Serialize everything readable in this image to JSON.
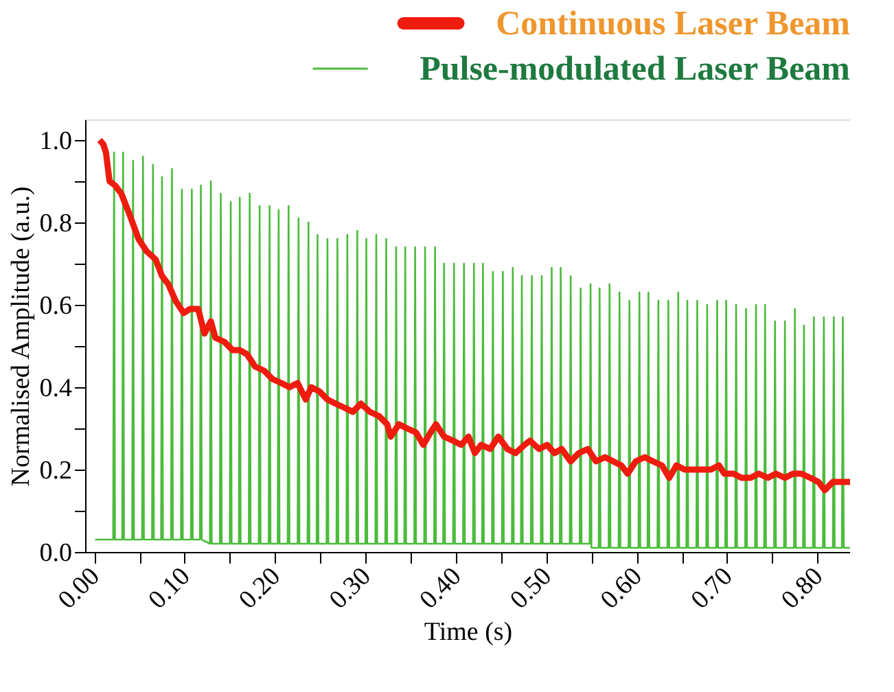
{
  "chart_data": {
    "type": "line",
    "xlabel": "Time (s)",
    "ylabel": "Normalised Amplitude (a.u.)",
    "xlim": [
      -0.01,
      0.836
    ],
    "ylim": [
      0,
      1.05
    ],
    "xticks": [
      {
        "value": 0,
        "label": "0.00"
      },
      {
        "value": 0.05,
        "label": null
      },
      {
        "value": 0.1,
        "label": "0.10"
      },
      {
        "value": 0.15,
        "label": null
      },
      {
        "value": 0.2,
        "label": "0.20"
      },
      {
        "value": 0.25,
        "label": null
      },
      {
        "value": 0.3,
        "label": "0.30"
      },
      {
        "value": 0.35,
        "label": null
      },
      {
        "value": 0.4,
        "label": "0.40"
      },
      {
        "value": 0.45,
        "label": null
      },
      {
        "value": 0.5,
        "label": "0.50"
      },
      {
        "value": 0.55,
        "label": null
      },
      {
        "value": 0.6,
        "label": "0.60"
      },
      {
        "value": 0.65,
        "label": null
      },
      {
        "value": 0.7,
        "label": "0.70"
      },
      {
        "value": 0.75,
        "label": null
      },
      {
        "value": 0.8,
        "label": "0.80"
      }
    ],
    "yticks": [
      {
        "value": 0,
        "label": "0.0"
      },
      {
        "value": 0.1,
        "label": null
      },
      {
        "value": 0.2,
        "label": "0.2"
      },
      {
        "value": 0.3,
        "label": null
      },
      {
        "value": 0.4,
        "label": "0.4"
      },
      {
        "value": 0.5,
        "label": null
      },
      {
        "value": 0.6,
        "label": "0.6"
      },
      {
        "value": 0.7,
        "label": null
      },
      {
        "value": 0.8,
        "label": "0.8"
      },
      {
        "value": 0.9,
        "label": null
      },
      {
        "value": 1.0,
        "label": "1.0"
      }
    ],
    "grid": false,
    "legend": "top right",
    "marker": "none",
    "line_style": "solid",
    "series": [
      {
        "name": "Pulse-modulated Laser Beam",
        "color": "#4cbb3c",
        "x": [
          0.001,
          0.021,
          0.022,
          0.023,
          0.031,
          0.032,
          0.033,
          0.042,
          0.043,
          0.044,
          0.053,
          0.054,
          0.055,
          0.064,
          0.065,
          0.066,
          0.074,
          0.075,
          0.076,
          0.085,
          0.086,
          0.087,
          0.096,
          0.097,
          0.098,
          0.107,
          0.108,
          0.109,
          0.117,
          0.118,
          0.119,
          0.128,
          0.129,
          0.13,
          0.139,
          0.14,
          0.141,
          0.15,
          0.151,
          0.152,
          0.16,
          0.161,
          0.162,
          0.171,
          0.172,
          0.173,
          0.182,
          0.183,
          0.184,
          0.193,
          0.194,
          0.195,
          0.203,
          0.204,
          0.205,
          0.214,
          0.215,
          0.216,
          0.225,
          0.226,
          0.227,
          0.236,
          0.237,
          0.238,
          0.246,
          0.247,
          0.248,
          0.257,
          0.258,
          0.259,
          0.268,
          0.269,
          0.27,
          0.279,
          0.28,
          0.281,
          0.29,
          0.291,
          0.292,
          0.3,
          0.301,
          0.302,
          0.311,
          0.312,
          0.313,
          0.322,
          0.323,
          0.324,
          0.333,
          0.334,
          0.335,
          0.343,
          0.344,
          0.345,
          0.354,
          0.355,
          0.356,
          0.365,
          0.366,
          0.367,
          0.376,
          0.377,
          0.378,
          0.386,
          0.387,
          0.388,
          0.397,
          0.398,
          0.399,
          0.408,
          0.409,
          0.41,
          0.419,
          0.42,
          0.421,
          0.429,
          0.43,
          0.431,
          0.44,
          0.441,
          0.442,
          0.451,
          0.452,
          0.453,
          0.462,
          0.463,
          0.464,
          0.472,
          0.473,
          0.474,
          0.483,
          0.484,
          0.485,
          0.494,
          0.495,
          0.496,
          0.505,
          0.506,
          0.507,
          0.515,
          0.516,
          0.517,
          0.526,
          0.527,
          0.528,
          0.537,
          0.538,
          0.539,
          0.548,
          0.549,
          0.55,
          0.558,
          0.559,
          0.56,
          0.569,
          0.57,
          0.571,
          0.58,
          0.581,
          0.582,
          0.591,
          0.592,
          0.593,
          0.602,
          0.603,
          0.604,
          0.612,
          0.613,
          0.614,
          0.623,
          0.624,
          0.625,
          0.634,
          0.635,
          0.636,
          0.645,
          0.646,
          0.647,
          0.655,
          0.656,
          0.657,
          0.666,
          0.667,
          0.668,
          0.677,
          0.678,
          0.679,
          0.688,
          0.689,
          0.69,
          0.698,
          0.699,
          0.7,
          0.709,
          0.71,
          0.711,
          0.72,
          0.721,
          0.722,
          0.731,
          0.732,
          0.733,
          0.741,
          0.742,
          0.743,
          0.752,
          0.753,
          0.754,
          0.763,
          0.764,
          0.765,
          0.774,
          0.775,
          0.776,
          0.784,
          0.785,
          0.786,
          0.795,
          0.796,
          0.797,
          0.806,
          0.807,
          0.808,
          0.817,
          0.818,
          0.819,
          0.827,
          0.828,
          0.829,
          0.836
        ],
        "values": [
          0.03,
          0.03,
          0.97,
          0.03,
          0.03,
          0.97,
          0.03,
          0.03,
          0.95,
          0.03,
          0.03,
          0.96,
          0.03,
          0.03,
          0.94,
          0.03,
          0.03,
          0.91,
          0.03,
          0.03,
          0.93,
          0.03,
          0.03,
          0.88,
          0.03,
          0.03,
          0.88,
          0.03,
          0.03,
          0.89,
          0.03,
          0.02,
          0.9,
          0.02,
          0.02,
          0.87,
          0.02,
          0.02,
          0.85,
          0.02,
          0.02,
          0.86,
          0.02,
          0.02,
          0.87,
          0.02,
          0.02,
          0.84,
          0.02,
          0.02,
          0.84,
          0.02,
          0.02,
          0.83,
          0.02,
          0.02,
          0.84,
          0.02,
          0.02,
          0.81,
          0.02,
          0.02,
          0.8,
          0.02,
          0.02,
          0.77,
          0.02,
          0.02,
          0.76,
          0.02,
          0.02,
          0.76,
          0.02,
          0.02,
          0.77,
          0.02,
          0.02,
          0.78,
          0.02,
          0.02,
          0.76,
          0.02,
          0.02,
          0.77,
          0.02,
          0.02,
          0.76,
          0.02,
          0.02,
          0.74,
          0.02,
          0.02,
          0.74,
          0.02,
          0.02,
          0.74,
          0.02,
          0.02,
          0.74,
          0.02,
          0.02,
          0.74,
          0.02,
          0.02,
          0.7,
          0.02,
          0.02,
          0.7,
          0.02,
          0.02,
          0.7,
          0.02,
          0.02,
          0.7,
          0.02,
          0.02,
          0.7,
          0.02,
          0.02,
          0.68,
          0.02,
          0.02,
          0.68,
          0.02,
          0.02,
          0.69,
          0.02,
          0.02,
          0.67,
          0.02,
          0.02,
          0.67,
          0.02,
          0.02,
          0.67,
          0.02,
          0.02,
          0.69,
          0.02,
          0.02,
          0.69,
          0.02,
          0.02,
          0.67,
          0.02,
          0.02,
          0.64,
          0.02,
          0.02,
          0.65,
          0.01,
          0.01,
          0.64,
          0.01,
          0.01,
          0.65,
          0.01,
          0.01,
          0.63,
          0.01,
          0.01,
          0.61,
          0.01,
          0.01,
          0.63,
          0.01,
          0.01,
          0.63,
          0.01,
          0.01,
          0.61,
          0.01,
          0.01,
          0.61,
          0.01,
          0.01,
          0.63,
          0.01,
          0.01,
          0.61,
          0.01,
          0.01,
          0.61,
          0.01,
          0.01,
          0.6,
          0.01,
          0.01,
          0.61,
          0.01,
          0.01,
          0.61,
          0.01,
          0.01,
          0.6,
          0.01,
          0.01,
          0.59,
          0.01,
          0.01,
          0.6,
          0.01,
          0.01,
          0.6,
          0.01,
          0.01,
          0.56,
          0.01,
          0.01,
          0.56,
          0.01,
          0.01,
          0.59,
          0.01,
          0.01,
          0.55,
          0.01,
          0.01,
          0.57,
          0.01,
          0.01,
          0.57,
          0.01,
          0.01,
          0.57,
          0.01,
          0.01,
          0.57,
          0.01,
          0.01
        ]
      },
      {
        "name": "Continuous Laser Beam",
        "color": "#ee1c0e",
        "x": [
          0.006,
          0.01,
          0.013,
          0.017,
          0.023,
          0.03,
          0.039,
          0.049,
          0.058,
          0.068,
          0.075,
          0.082,
          0.09,
          0.099,
          0.106,
          0.115,
          0.122,
          0.129,
          0.134,
          0.144,
          0.153,
          0.161,
          0.169,
          0.178,
          0.188,
          0.197,
          0.207,
          0.216,
          0.225,
          0.234,
          0.24,
          0.249,
          0.258,
          0.267,
          0.277,
          0.286,
          0.295,
          0.305,
          0.315,
          0.324,
          0.328,
          0.337,
          0.346,
          0.356,
          0.364,
          0.372,
          0.378,
          0.387,
          0.397,
          0.406,
          0.414,
          0.421,
          0.428,
          0.438,
          0.447,
          0.457,
          0.466,
          0.476,
          0.482,
          0.492,
          0.501,
          0.509,
          0.517,
          0.527,
          0.536,
          0.546,
          0.555,
          0.565,
          0.574,
          0.583,
          0.59,
          0.599,
          0.609,
          0.618,
          0.628,
          0.636,
          0.644,
          0.653,
          0.662,
          0.672,
          0.682,
          0.691,
          0.697,
          0.707,
          0.716,
          0.726,
          0.735,
          0.745,
          0.754,
          0.764,
          0.773,
          0.782,
          0.792,
          0.801,
          0.808,
          0.817,
          0.827,
          0.836
        ],
        "values": [
          1.0,
          0.99,
          0.97,
          0.9,
          0.89,
          0.87,
          0.82,
          0.76,
          0.73,
          0.71,
          0.67,
          0.65,
          0.61,
          0.58,
          0.59,
          0.59,
          0.53,
          0.56,
          0.52,
          0.51,
          0.49,
          0.49,
          0.48,
          0.45,
          0.44,
          0.42,
          0.41,
          0.4,
          0.41,
          0.37,
          0.4,
          0.39,
          0.37,
          0.36,
          0.35,
          0.34,
          0.36,
          0.34,
          0.33,
          0.31,
          0.28,
          0.31,
          0.3,
          0.29,
          0.26,
          0.29,
          0.31,
          0.28,
          0.27,
          0.26,
          0.28,
          0.24,
          0.26,
          0.25,
          0.28,
          0.25,
          0.24,
          0.26,
          0.27,
          0.25,
          0.26,
          0.24,
          0.25,
          0.22,
          0.24,
          0.25,
          0.22,
          0.23,
          0.22,
          0.21,
          0.19,
          0.22,
          0.23,
          0.22,
          0.21,
          0.18,
          0.21,
          0.2,
          0.2,
          0.2,
          0.2,
          0.21,
          0.19,
          0.19,
          0.18,
          0.18,
          0.19,
          0.18,
          0.19,
          0.18,
          0.19,
          0.19,
          0.18,
          0.17,
          0.15,
          0.17,
          0.17,
          0.17
        ]
      }
    ]
  }
}
